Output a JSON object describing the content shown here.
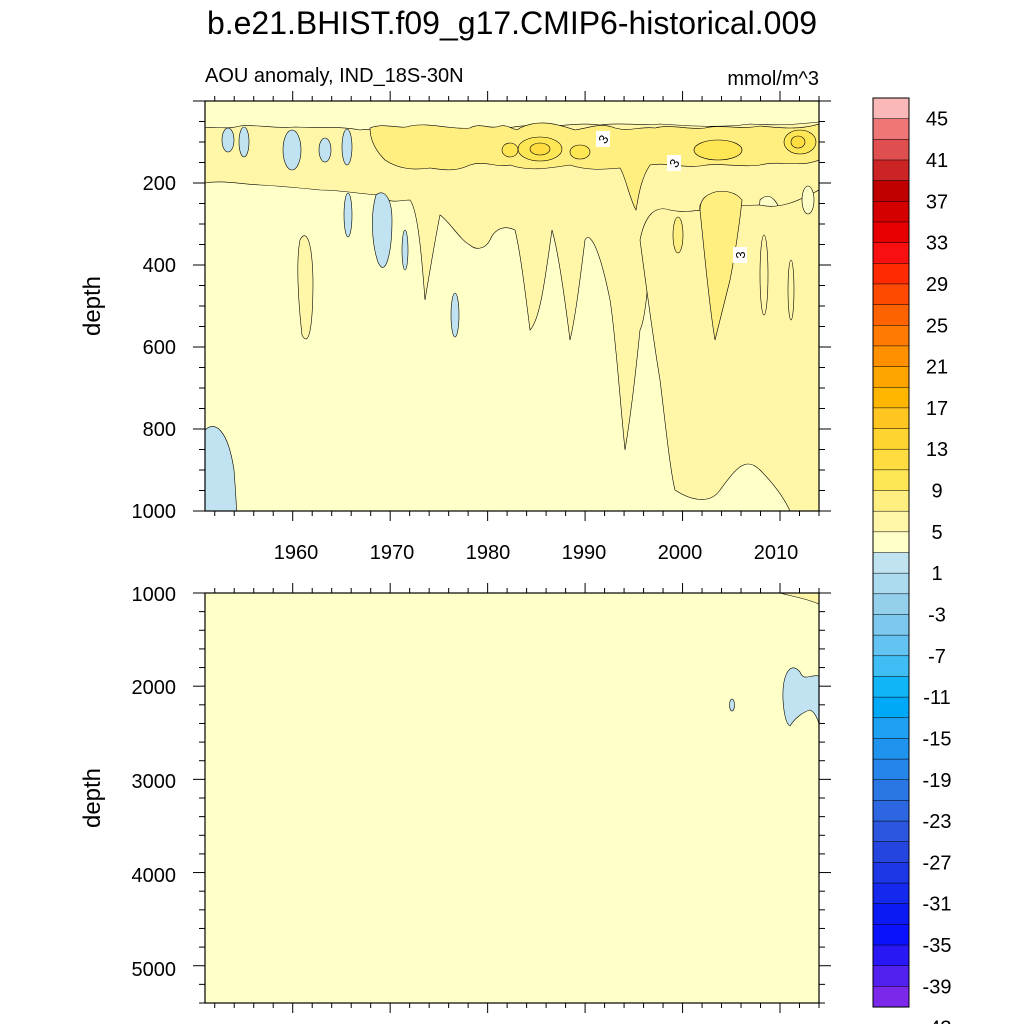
{
  "chart_data": {
    "type": "heatmap",
    "title": "b.e21.BHIST.f09_g17.CMIP6-historical.009",
    "subtitle_left": "AOU anomaly, IND_18S-30N",
    "subtitle_right": "mmol/m^3",
    "xlabel": "",
    "xticks": [
      "1960",
      "1970",
      "1980",
      "1990",
      "2000",
      "2010"
    ],
    "xlim": [
      1951,
      2014
    ],
    "panels": [
      {
        "name": "upper",
        "ylabel": "depth",
        "ylim": [
          0,
          1000
        ],
        "yticks": [
          "200",
          "400",
          "600",
          "800",
          "1000"
        ],
        "background_level": "1",
        "contour_labels": [
          "3",
          "3",
          "3"
        ],
        "features": [
          {
            "level": "-3",
            "year_range": [
              1951,
              1954
            ],
            "depth_range": [
              430,
              810
            ],
            "note": "negative anomaly at western edge"
          },
          {
            "level": "-3",
            "year_range": [
              1959,
              1961
            ],
            "depth_range": [
              80,
              170
            ]
          },
          {
            "level": "-3",
            "year_range": [
              1968,
              1970
            ],
            "depth_range": [
              230,
              390
            ]
          },
          {
            "level": "-3",
            "year_range": [
              1976,
              1977
            ],
            "depth_range": [
              470,
              570
            ]
          },
          {
            "level": "5",
            "year_range": [
              1984,
              1987
            ],
            "depth_range": [
              90,
              150
            ]
          },
          {
            "level": "5",
            "year_range": [
              2003,
              2007
            ],
            "depth_range": [
              200,
              700
            ]
          },
          {
            "level": "3",
            "year_range": [
              2002,
              2014
            ],
            "depth_range": [
              200,
              1000
            ]
          }
        ]
      },
      {
        "name": "lower",
        "ylabel": "depth",
        "ylim": [
          1000,
          5400
        ],
        "yticks": [
          "1000",
          "2000",
          "3000",
          "4000",
          "5000"
        ],
        "background_level": "1",
        "features": [
          {
            "level": "-3",
            "year_range": [
              2011,
              2014
            ],
            "depth_range": [
              1700,
              2450
            ]
          },
          {
            "level": "-3",
            "year_range": [
              2006,
              2006
            ],
            "depth_range": [
              2130,
              2270
            ]
          }
        ]
      }
    ],
    "colorbar": {
      "labels": [
        "45",
        "41",
        "37",
        "33",
        "29",
        "25",
        "21",
        "17",
        "13",
        "9",
        "5",
        "1",
        "-3",
        "-7",
        "-11",
        "-15",
        "-19",
        "-23",
        "-27",
        "-31",
        "-35",
        "-39",
        "-43"
      ],
      "colors": [
        "#fbb8b8",
        "#ee7676",
        "#e04f4f",
        "#cc2424",
        "#c00000",
        "#d40000",
        "#e60000",
        "#f81010",
        "#ff2a00",
        "#ff4800",
        "#ff6200",
        "#ff7a00",
        "#ff9000",
        "#ffa500",
        "#ffb600",
        "#ffc520",
        "#ffd330",
        "#ffdc40",
        "#ffe655",
        "#ffee80",
        "#fff6a8",
        "#ffffc8",
        "#c1e3f1",
        "#acdaef",
        "#94cfec",
        "#7dc8ee",
        "#63c3f2",
        "#3ebef5",
        "#10b5f8",
        "#00a9f8",
        "#1ea0f3",
        "#2093ee",
        "#2685ea",
        "#2a76e5",
        "#2c66e0",
        "#2b56dd",
        "#2546de",
        "#1d36e6",
        "#1428ee",
        "#0b1af5",
        "#0a12fd",
        "#2a17f6",
        "#5220ef",
        "#7c28ea"
      ]
    }
  }
}
